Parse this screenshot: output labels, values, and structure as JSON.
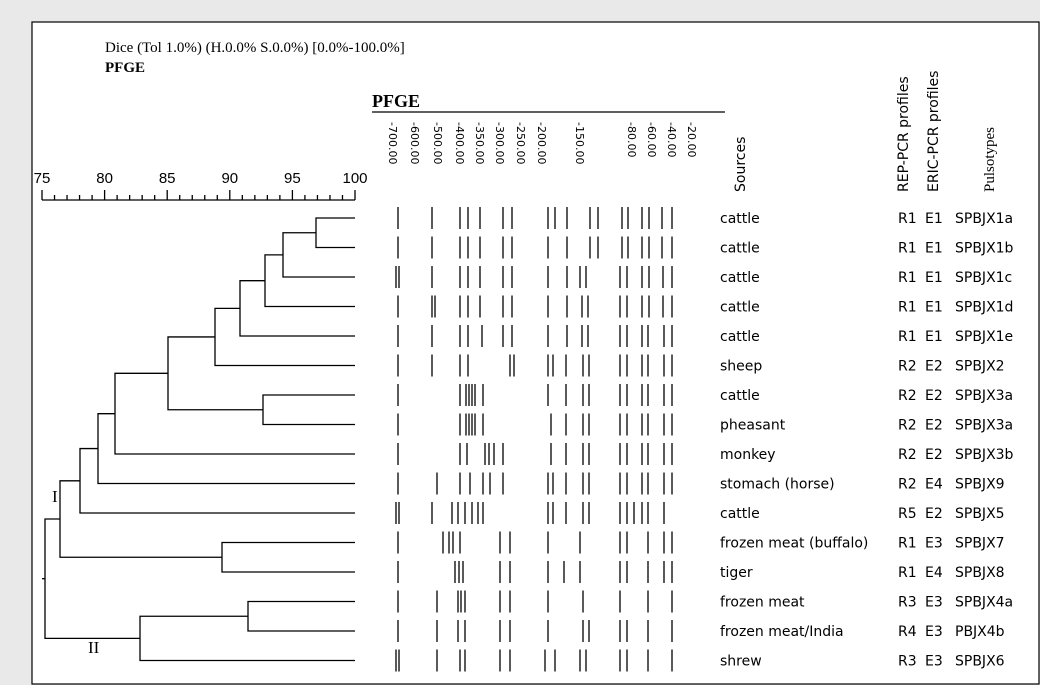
{
  "header": {
    "line1": "Dice (Tol 1.0%) (H.0.0% S.0.0%) [0.0%-100.0%]",
    "line2": "PFGE"
  },
  "scale": {
    "ticks": [
      "75",
      "80",
      "85",
      "90",
      "95",
      "100"
    ]
  },
  "pfge": {
    "title": "PFGE",
    "sizes": [
      "-700.00",
      "-600.00",
      "-500.00",
      "-400.00",
      "-350.00",
      "-300.00",
      "-250.00",
      "-200.00",
      "-150.00",
      "-80.00",
      "-60.00",
      "-40.00",
      "-20.00"
    ]
  },
  "columns": {
    "sources": "Sources",
    "rep": "REP-PCR profiles",
    "eric": "ERIC-PCR profiles",
    "pulsotypes": "Pulsotypes"
  },
  "rows": [
    {
      "source": "cattle",
      "rep": "R1",
      "eric": "E1",
      "pulsotype": "SPBJX1a"
    },
    {
      "source": "cattle",
      "rep": "R1",
      "eric": "E1",
      "pulsotype": "SPBJX1b"
    },
    {
      "source": "cattle",
      "rep": "R1",
      "eric": "E1",
      "pulsotype": "SPBJX1c"
    },
    {
      "source": "cattle",
      "rep": "R1",
      "eric": "E1",
      "pulsotype": "SPBJX1d"
    },
    {
      "source": "cattle",
      "rep": "R1",
      "eric": "E1",
      "pulsotype": "SPBJX1e"
    },
    {
      "source": "sheep",
      "rep": "R2",
      "eric": "E2",
      "pulsotype": "SPBJX2"
    },
    {
      "source": "cattle",
      "rep": "R2",
      "eric": "E2",
      "pulsotype": "SPBJX3a"
    },
    {
      "source": "pheasant",
      "rep": "R2",
      "eric": "E2",
      "pulsotype": "SPBJX3a"
    },
    {
      "source": "monkey",
      "rep": "R2",
      "eric": "E2",
      "pulsotype": "SPBJX3b"
    },
    {
      "source": "stomach (horse)",
      "rep": "R2",
      "eric": "E4",
      "pulsotype": "SPBJX9"
    },
    {
      "source": "cattle",
      "rep": "R5",
      "eric": "E2",
      "pulsotype": "SPBJX5"
    },
    {
      "source": "frozen meat (buffalo)",
      "rep": "R1",
      "eric": "E3",
      "pulsotype": "SPBJX7"
    },
    {
      "source": "tiger",
      "rep": "R1",
      "eric": "E4",
      "pulsotype": "SPBJX8"
    },
    {
      "source": "frozen meat",
      "rep": "R3",
      "eric": "E3",
      "pulsotype": "SPBJX4a"
    },
    {
      "source": "frozen meat/India",
      "rep": "R4",
      "eric": "E3",
      "pulsotype": "PBJX4b"
    },
    {
      "source": "shrew",
      "rep": "R3",
      "eric": "E3",
      "pulsotype": "SPBJX6"
    }
  ],
  "clusters": [
    "I",
    "II"
  ]
}
